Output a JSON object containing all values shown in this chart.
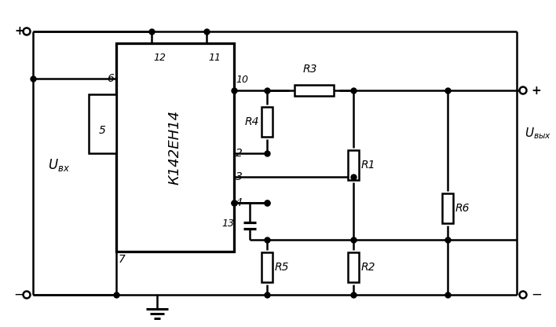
{
  "bg_color": "#ffffff",
  "lc": "#000000",
  "lw": 1.8,
  "fig_w": 7.08,
  "fig_h": 4.16,
  "dpi": 100,
  "ic_label": "К142ЕН14",
  "ubx": "U_{вх}",
  "ubyx": "U_{вых}"
}
